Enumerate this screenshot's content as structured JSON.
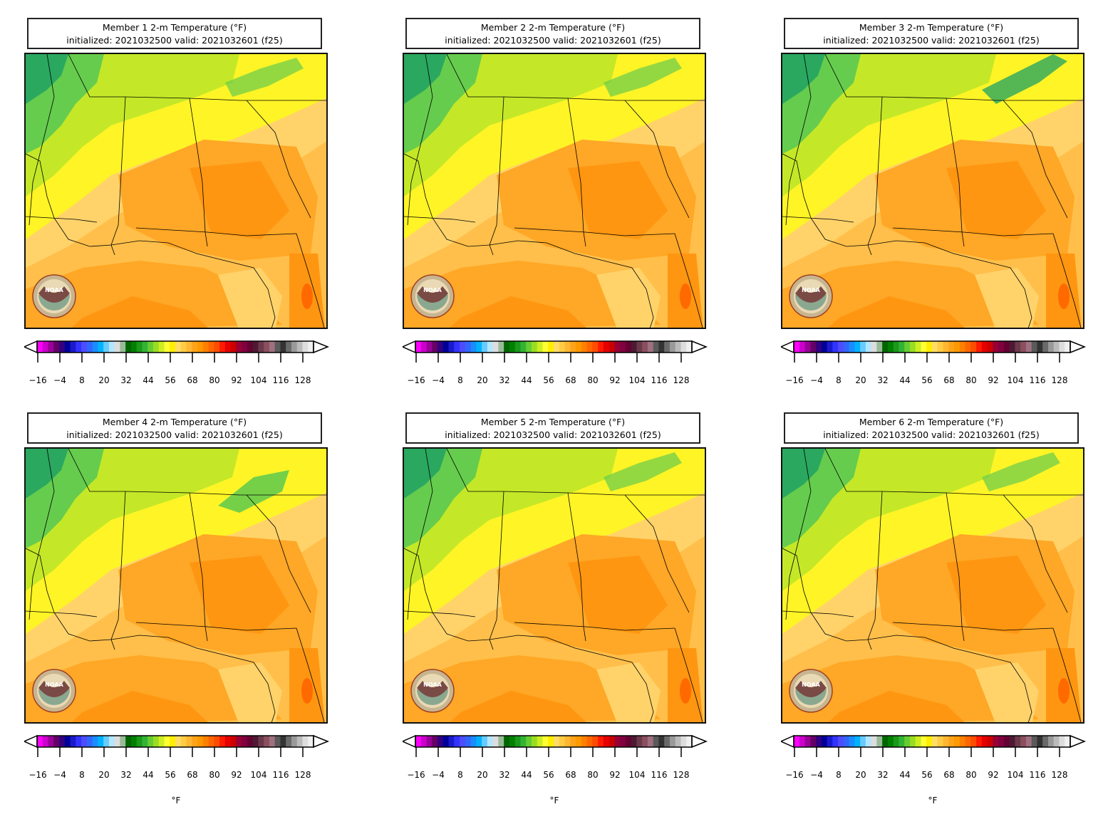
{
  "panels": [
    {
      "title": "Member 1 2-m Temperature (°F)",
      "subtitle": "initialized: 2021032500 valid: 2021032601 (f25)",
      "unit": ""
    },
    {
      "title": "Member 2 2-m Temperature (°F)",
      "subtitle": "initialized: 2021032500 valid: 2021032601 (f25)",
      "unit": ""
    },
    {
      "title": "Member 3 2-m Temperature (°F)",
      "subtitle": "initialized: 2021032500 valid: 2021032601 (f25)",
      "unit": ""
    },
    {
      "title": "Member 4 2-m Temperature (°F)",
      "subtitle": "initialized: 2021032500 valid: 2021032601 (f25)",
      "unit": "°F"
    },
    {
      "title": "Member 5 2-m Temperature (°F)",
      "subtitle": "initialized: 2021032500 valid: 2021032601 (f25)",
      "unit": "°F"
    },
    {
      "title": "Member 6 2-m Temperature (°F)",
      "subtitle": "initialized: 2021032500 valid: 2021032601 (f25)",
      "unit": "°F"
    }
  ],
  "colorbar": {
    "ticks": [
      "−16",
      "−4",
      "8",
      "20",
      "32",
      "44",
      "56",
      "68",
      "80",
      "92",
      "104",
      "116",
      "128"
    ],
    "colors": [
      "#ff00ff",
      "#cc00cc",
      "#990099",
      "#660066",
      "#330080",
      "#000099",
      "#1a1acc",
      "#3333ff",
      "#4d4dff",
      "#3366ff",
      "#1a8cff",
      "#00b3ff",
      "#66ccff",
      "#b3e6ff",
      "#dddddd",
      "#99bb99",
      "#006600",
      "#008000",
      "#1a991a",
      "#33b333",
      "#66cc33",
      "#99dd22",
      "#ccee22",
      "#ffff33",
      "#ffee00",
      "#ffdd66",
      "#ffcc44",
      "#ffb733",
      "#ffa31a",
      "#ff9900",
      "#ff8000",
      "#ff6600",
      "#ff4d00",
      "#ff1a00",
      "#e60000",
      "#cc0000",
      "#990033",
      "#800040",
      "#660033",
      "#4d1a33",
      "#6b3a4a",
      "#8a5060",
      "#a07080",
      "#5a5a5a",
      "#333333",
      "#6a6a6a",
      "#999999",
      "#bbbbbb",
      "#dddddd",
      "#f0f0f0"
    ]
  },
  "map_colors": {
    "green_dark": "#2aa860",
    "green": "#66cc4d",
    "yellow_green": "#c4e827",
    "yellow": "#fff426",
    "light_orange": "#ffd36a",
    "orange_light": "#ffbf4a",
    "orange": "#ffa726",
    "orange_deep": "#ff9611",
    "red_orange": "#ff6a00"
  },
  "logo_text": "NOAA"
}
